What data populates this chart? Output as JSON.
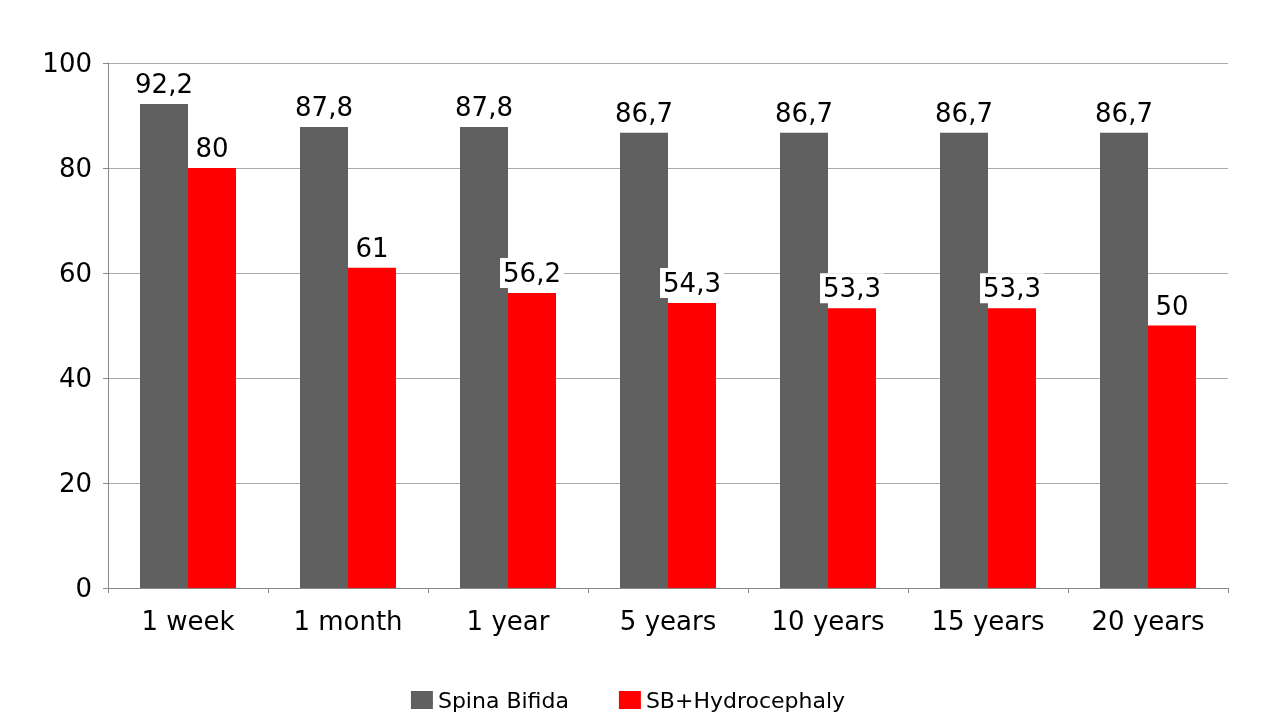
{
  "chart_data": {
    "type": "bar",
    "categories": [
      "1 week",
      "1 month",
      "1 year",
      "5 years",
      "10 years",
      "15 years",
      "20 years"
    ],
    "series": [
      {
        "name": "Spina Bifida",
        "color": "#606060",
        "values": [
          92.2,
          87.8,
          87.8,
          86.7,
          86.7,
          86.7,
          86.7
        ],
        "value_labels": [
          "92,2",
          "87,8",
          "87,8",
          "86,7",
          "86,7",
          "86,7",
          "86,7"
        ]
      },
      {
        "name": "SB+Hydrocephaly",
        "color": "#ff0000",
        "values": [
          80,
          61,
          56.2,
          54.3,
          53.3,
          53.3,
          50
        ],
        "value_labels": [
          "80",
          "61",
          "56,2",
          "54,3",
          "53,3",
          "53,3",
          "50"
        ]
      }
    ],
    "ylim": [
      0,
      100
    ],
    "yticks": [
      0,
      20,
      40,
      60,
      80,
      100
    ],
    "grid": "y",
    "legend": "bottom"
  }
}
